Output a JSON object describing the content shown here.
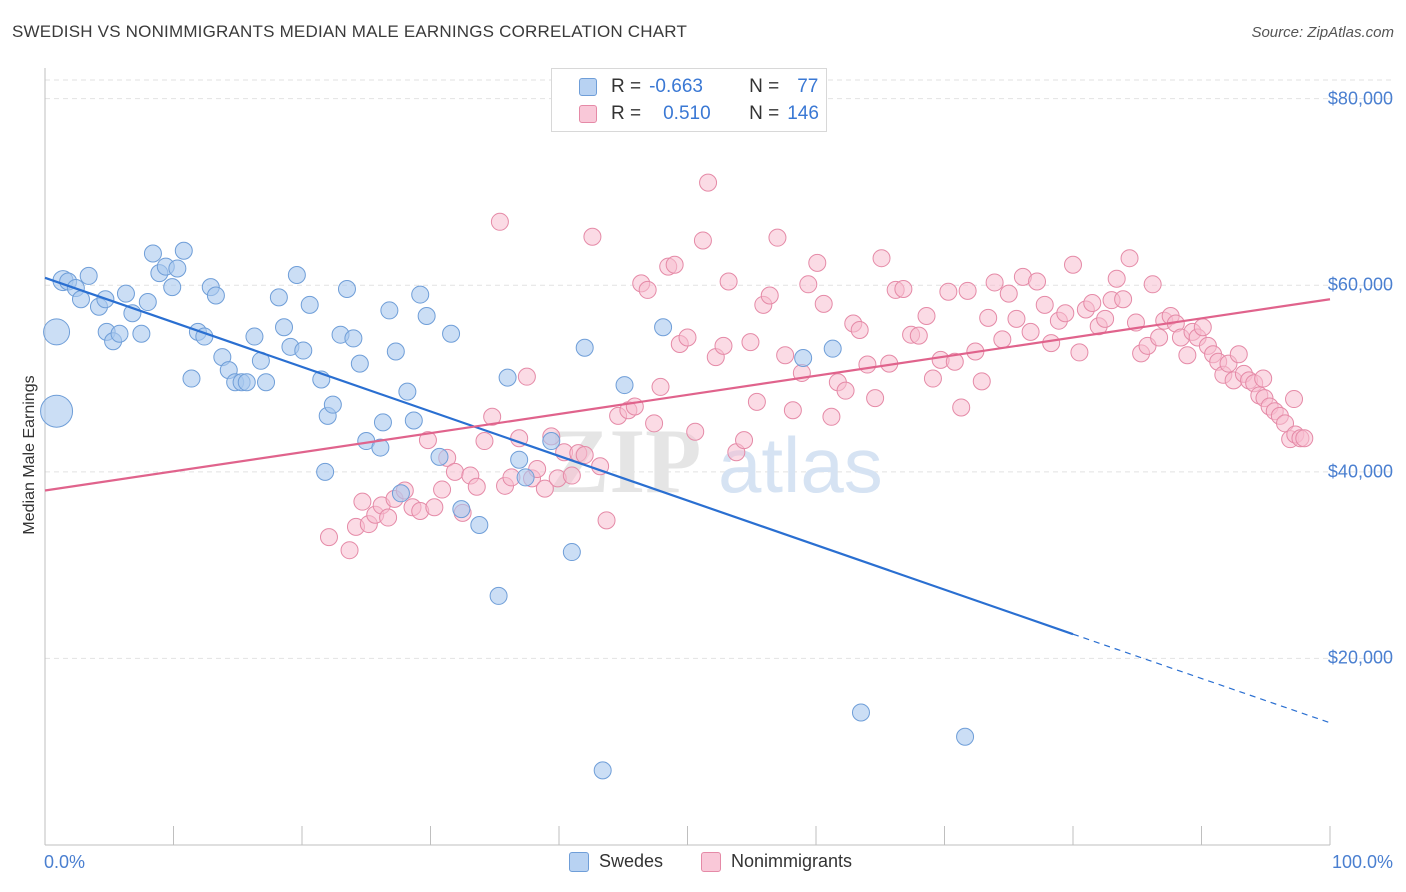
{
  "title": "SWEDISH VS NONIMMIGRANTS MEDIAN MALE EARNINGS CORRELATION CHART",
  "source": "Source: ZipAtlas.com",
  "watermark": {
    "zip": "ZIP",
    "atlas": "atlas"
  },
  "legend_top": {
    "rows": [
      {
        "r_label": "R =",
        "r_value": "-0.663",
        "n_label": "N =",
        "n_value": "77"
      },
      {
        "r_label": "R =",
        "r_value": "0.510",
        "n_label": "N =",
        "n_value": "146"
      }
    ]
  },
  "legend_bottom": {
    "series1": "Swedes",
    "series2": "Nonimmigrants"
  },
  "colors": {
    "swedes_fill": "#a9c8ef",
    "swedes_stroke": "#6f9ed8",
    "swedes_line": "#2a6fd1",
    "non_fill": "#f7bdd0",
    "non_stroke": "#e58aa7",
    "non_line": "#e0638c",
    "tick_text": "#4a7fd0",
    "grid": "#e2e2e2"
  },
  "chart_data": {
    "type": "scatter",
    "title": "SWEDISH VS NONIMMIGRANTS MEDIAN MALE EARNINGS CORRELATION CHART",
    "xlabel": "",
    "ylabel": "Median Male Earnings",
    "xlim": [
      0,
      100
    ],
    "ylim": [
      0,
      82000
    ],
    "x_tick_labels": [
      "0.0%",
      "100.0%"
    ],
    "y_ticks": [
      20000,
      40000,
      60000,
      80000
    ],
    "y_tick_labels": [
      "$20,000",
      "$40,000",
      "$60,000",
      "$80,000"
    ],
    "grid": true,
    "legend": "top-center",
    "series": [
      {
        "name": "Swedes",
        "R": -0.663,
        "N": 77,
        "trend": {
          "x0": 0,
          "y0": 60800,
          "x1": 80,
          "y1": 22600,
          "dashed_to": [
            100,
            13100
          ]
        },
        "points": [
          [
            0.9,
            55000
          ],
          [
            0.9,
            46500
          ],
          [
            1.4,
            60500
          ],
          [
            1.8,
            60400
          ],
          [
            2.4,
            59700
          ],
          [
            2.8,
            58500
          ],
          [
            3.4,
            61000
          ],
          [
            4.2,
            57700
          ],
          [
            4.7,
            58500
          ],
          [
            4.8,
            55000
          ],
          [
            5.3,
            54000
          ],
          [
            5.8,
            54800
          ],
          [
            6.3,
            59100
          ],
          [
            6.8,
            57000
          ],
          [
            7.5,
            54800
          ],
          [
            8.0,
            58200
          ],
          [
            8.4,
            63400
          ],
          [
            8.9,
            61300
          ],
          [
            9.4,
            62000
          ],
          [
            9.9,
            59800
          ],
          [
            10.3,
            61800
          ],
          [
            10.8,
            63700
          ],
          [
            11.4,
            50000
          ],
          [
            11.9,
            55000
          ],
          [
            12.4,
            54500
          ],
          [
            12.9,
            59800
          ],
          [
            13.3,
            58900
          ],
          [
            13.8,
            52300
          ],
          [
            14.3,
            50900
          ],
          [
            14.8,
            49600
          ],
          [
            15.3,
            49600
          ],
          [
            15.7,
            49600
          ],
          [
            16.3,
            54500
          ],
          [
            16.8,
            51900
          ],
          [
            17.2,
            49600
          ],
          [
            18.2,
            58700
          ],
          [
            18.6,
            55500
          ],
          [
            19.1,
            53400
          ],
          [
            19.6,
            61100
          ],
          [
            20.1,
            53000
          ],
          [
            20.6,
            57900
          ],
          [
            21.5,
            49900
          ],
          [
            22.0,
            46000
          ],
          [
            22.4,
            47200
          ],
          [
            23.0,
            54700
          ],
          [
            23.5,
            59600
          ],
          [
            24.0,
            54300
          ],
          [
            24.5,
            51600
          ],
          [
            21.8,
            40000
          ],
          [
            25.0,
            43300
          ],
          [
            26.1,
            42600
          ],
          [
            26.3,
            45300
          ],
          [
            26.8,
            57300
          ],
          [
            27.3,
            52900
          ],
          [
            27.7,
            37700
          ],
          [
            28.2,
            48600
          ],
          [
            28.7,
            45500
          ],
          [
            29.2,
            59000
          ],
          [
            29.7,
            56700
          ],
          [
            30.7,
            41600
          ],
          [
            31.6,
            54800
          ],
          [
            32.4,
            36000
          ],
          [
            33.8,
            34300
          ],
          [
            36.0,
            50100
          ],
          [
            36.9,
            41300
          ],
          [
            37.4,
            39400
          ],
          [
            39.4,
            43300
          ],
          [
            41.0,
            31400
          ],
          [
            35.3,
            26700
          ],
          [
            42.0,
            53300
          ],
          [
            43.4,
            8000
          ],
          [
            45.1,
            49300
          ],
          [
            48.1,
            55500
          ],
          [
            59.0,
            52200
          ],
          [
            61.3,
            53200
          ],
          [
            63.5,
            14200
          ],
          [
            71.6,
            11600
          ]
        ]
      },
      {
        "name": "Nonimmigrants",
        "R": 0.51,
        "N": 146,
        "trend": {
          "x0": 0,
          "y0": 38000,
          "x1": 100,
          "y1": 58500
        },
        "points": [
          [
            22.1,
            33000
          ],
          [
            23.7,
            31600
          ],
          [
            24.2,
            34100
          ],
          [
            24.7,
            36800
          ],
          [
            25.2,
            34400
          ],
          [
            25.7,
            35400
          ],
          [
            26.2,
            36400
          ],
          [
            26.7,
            35100
          ],
          [
            27.2,
            37100
          ],
          [
            28.0,
            38000
          ],
          [
            28.6,
            36200
          ],
          [
            29.2,
            35800
          ],
          [
            29.8,
            43400
          ],
          [
            30.3,
            36200
          ],
          [
            30.9,
            38100
          ],
          [
            31.3,
            41500
          ],
          [
            31.9,
            40000
          ],
          [
            32.5,
            35600
          ],
          [
            33.1,
            39600
          ],
          [
            33.6,
            38400
          ],
          [
            34.2,
            43300
          ],
          [
            34.8,
            45900
          ],
          [
            35.4,
            66800
          ],
          [
            35.8,
            38500
          ],
          [
            36.3,
            39400
          ],
          [
            36.9,
            43600
          ],
          [
            37.5,
            50200
          ],
          [
            37.9,
            39300
          ],
          [
            38.3,
            40300
          ],
          [
            38.9,
            38200
          ],
          [
            39.4,
            43800
          ],
          [
            39.9,
            39300
          ],
          [
            40.4,
            42100
          ],
          [
            41.0,
            39600
          ],
          [
            41.5,
            42000
          ],
          [
            42.0,
            41800
          ],
          [
            42.6,
            65200
          ],
          [
            43.2,
            40600
          ],
          [
            43.7,
            34800
          ],
          [
            44.6,
            46000
          ],
          [
            45.4,
            46600
          ],
          [
            45.9,
            47000
          ],
          [
            46.4,
            60200
          ],
          [
            46.9,
            59500
          ],
          [
            47.4,
            45200
          ],
          [
            47.9,
            49100
          ],
          [
            48.5,
            62000
          ],
          [
            49.0,
            62200
          ],
          [
            49.4,
            53700
          ],
          [
            50.0,
            54400
          ],
          [
            50.6,
            44300
          ],
          [
            51.2,
            64800
          ],
          [
            51.6,
            71000
          ],
          [
            52.2,
            52300
          ],
          [
            52.8,
            53500
          ],
          [
            53.2,
            60400
          ],
          [
            53.8,
            42100
          ],
          [
            54.4,
            43400
          ],
          [
            54.9,
            53900
          ],
          [
            55.4,
            47500
          ],
          [
            55.9,
            57900
          ],
          [
            56.4,
            58900
          ],
          [
            57.0,
            65100
          ],
          [
            57.6,
            52500
          ],
          [
            58.2,
            46600
          ],
          [
            58.9,
            50600
          ],
          [
            59.4,
            60100
          ],
          [
            60.1,
            62400
          ],
          [
            60.6,
            58000
          ],
          [
            61.2,
            45900
          ],
          [
            61.7,
            49600
          ],
          [
            62.3,
            48700
          ],
          [
            62.9,
            55900
          ],
          [
            63.4,
            55200
          ],
          [
            64.0,
            51500
          ],
          [
            64.6,
            47900
          ],
          [
            65.1,
            62900
          ],
          [
            65.7,
            51600
          ],
          [
            66.2,
            59500
          ],
          [
            66.8,
            59600
          ],
          [
            67.4,
            54700
          ],
          [
            68.0,
            54600
          ],
          [
            68.6,
            56700
          ],
          [
            69.1,
            50000
          ],
          [
            69.7,
            52000
          ],
          [
            70.3,
            59300
          ],
          [
            70.8,
            51800
          ],
          [
            71.3,
            46900
          ],
          [
            71.8,
            59400
          ],
          [
            72.4,
            52900
          ],
          [
            72.9,
            49700
          ],
          [
            73.4,
            56500
          ],
          [
            73.9,
            60300
          ],
          [
            74.5,
            54200
          ],
          [
            75.0,
            59100
          ],
          [
            75.6,
            56400
          ],
          [
            76.1,
            60900
          ],
          [
            76.7,
            55000
          ],
          [
            77.2,
            60400
          ],
          [
            77.8,
            57900
          ],
          [
            78.3,
            53800
          ],
          [
            78.9,
            56200
          ],
          [
            79.4,
            57000
          ],
          [
            80.0,
            62200
          ],
          [
            80.5,
            52800
          ],
          [
            81.0,
            57400
          ],
          [
            81.5,
            58100
          ],
          [
            82.0,
            55600
          ],
          [
            82.5,
            56400
          ],
          [
            83.0,
            58400
          ],
          [
            83.4,
            60700
          ],
          [
            83.9,
            58500
          ],
          [
            84.4,
            62900
          ],
          [
            84.9,
            56000
          ],
          [
            85.3,
            52700
          ],
          [
            85.8,
            53500
          ],
          [
            86.2,
            60100
          ],
          [
            86.7,
            54400
          ],
          [
            87.1,
            56200
          ],
          [
            87.6,
            56700
          ],
          [
            88.0,
            55900
          ],
          [
            88.4,
            54400
          ],
          [
            88.9,
            52500
          ],
          [
            89.3,
            55000
          ],
          [
            89.7,
            54400
          ],
          [
            90.1,
            55500
          ],
          [
            90.5,
            53500
          ],
          [
            90.9,
            52600
          ],
          [
            91.3,
            51800
          ],
          [
            91.7,
            50400
          ],
          [
            92.1,
            51600
          ],
          [
            92.5,
            49800
          ],
          [
            92.9,
            52600
          ],
          [
            93.3,
            50500
          ],
          [
            93.7,
            49800
          ],
          [
            94.1,
            49500
          ],
          [
            94.5,
            48200
          ],
          [
            94.9,
            47900
          ],
          [
            95.3,
            47000
          ],
          [
            95.7,
            46500
          ],
          [
            96.1,
            46000
          ],
          [
            96.5,
            45200
          ],
          [
            96.9,
            43500
          ],
          [
            97.3,
            44000
          ],
          [
            97.7,
            43600
          ],
          [
            98.0,
            43600
          ],
          [
            97.2,
            47800
          ],
          [
            94.8,
            50000
          ]
        ]
      }
    ]
  }
}
